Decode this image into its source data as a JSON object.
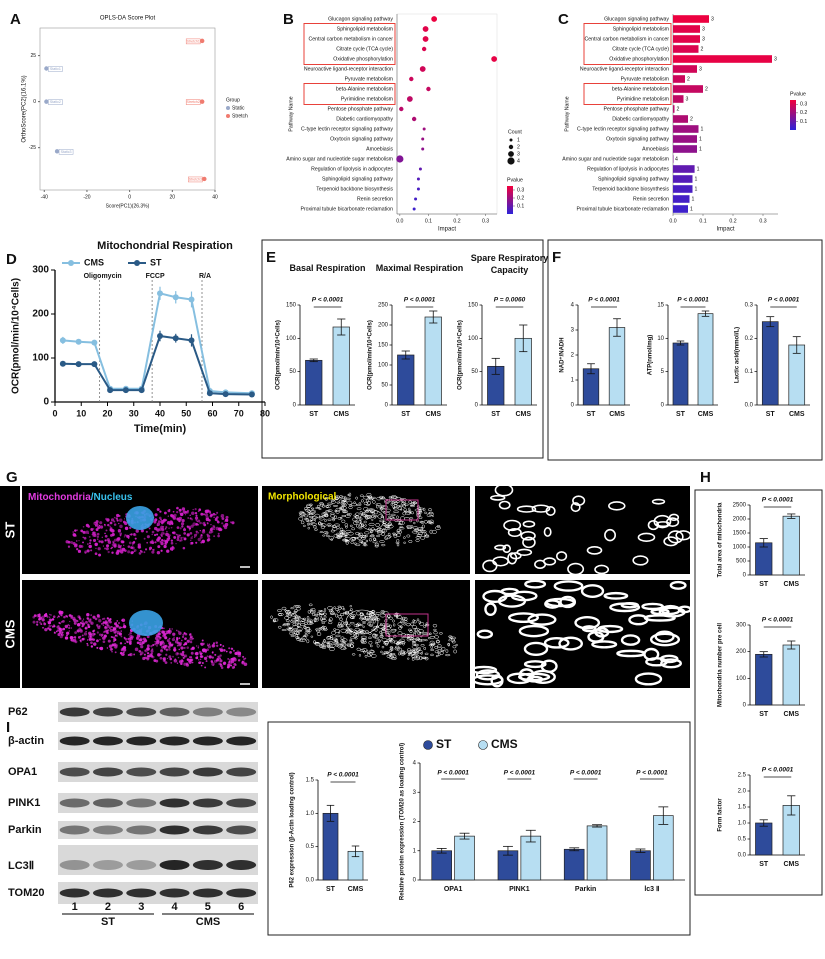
{
  "panels": [
    "A",
    "B",
    "C",
    "D",
    "E",
    "F",
    "G",
    "H",
    "I"
  ],
  "microscopy": {
    "stain": [
      "Mitochondria",
      "/Nucleus"
    ],
    "morph": "Morphological",
    "rows": [
      "ST",
      "CMS"
    ]
  },
  "blot": {
    "proteins": [
      "P62",
      "β-actin",
      "OPA1",
      "PINK1",
      "Parkin",
      "LC3Ⅱ",
      "TOM20"
    ],
    "lanes": [
      1,
      2,
      3,
      4,
      5,
      6
    ],
    "groups": [
      "ST",
      "CMS"
    ]
  },
  "chart_data": [
    {
      "type": "scatter",
      "title": "OPLS-DA Score Plot",
      "xlabel": "Score(PC1)(26.3%)",
      "ylabel": "OrthoScore(PC2)(16.1%)",
      "legend_title": "Group",
      "series": [
        {
          "name": "Static",
          "color": "#9aa9c9",
          "x": [
            -39,
            -39,
            -34
          ],
          "y": [
            18,
            0,
            -27
          ],
          "labels": [
            "Static1",
            "Static2",
            "Static3"
          ]
        },
        {
          "name": "Stretch",
          "color": "#f07b6f",
          "x": [
            34,
            34,
            35
          ],
          "y": [
            33,
            0,
            -42
          ],
          "labels": [
            "Stretch1",
            "Stretch2",
            "Stretch3"
          ]
        }
      ],
      "xlim": [
        -42,
        40
      ],
      "ylim": [
        -48,
        40
      ],
      "xticks": [
        -40,
        -20,
        0,
        20,
        40
      ],
      "yticks": [
        -25,
        0,
        25
      ]
    },
    {
      "type": "bubble",
      "ylabel": "Pathway Name",
      "xlabel": "Impact",
      "categories": [
        "Glucagon signaling pathway",
        "Sphingolipid metabolism",
        "Central carbon metabolism in cancer",
        "Citrate cycle (TCA cycle)",
        "Oxidative phosphorylation",
        "Neuroactive ligand-receptor interaction",
        "Pyruvate metabolism",
        "beta-Alanine metabolism",
        "Pyrimidine metabolism",
        "Pentose phosphate pathway",
        "Diabetic cardiomyopathy",
        "C-type lectin receptor signaling pathway",
        "Oxytocin signaling pathway",
        "Amoebiasis",
        "Amino sugar and nucleotide sugar metabolism",
        "Regulation of lipolysis in adipocytes",
        "Sphingolipid signaling pathway",
        "Terpenoid backbone biosynthesis",
        "Renin secretion",
        "Proximal tubule bicarbonate reclamation"
      ],
      "values": [
        0.12,
        0.09,
        0.09,
        0.085,
        0.33,
        0.08,
        0.04,
        0.1,
        0.035,
        0.005,
        0.05,
        0.085,
        0.08,
        0.08,
        0,
        0.072,
        0.065,
        0.065,
        0.055,
        0.05
      ],
      "counts": [
        3,
        3,
        3,
        2,
        3,
        3,
        2,
        2,
        3,
        2,
        2,
        1,
        1,
        1,
        4,
        1,
        1,
        1,
        1,
        1
      ],
      "pvalues": [
        0.01,
        0.03,
        0.03,
        0.04,
        0.02,
        0.06,
        0.07,
        0.08,
        0.09,
        0.1,
        0.12,
        0.15,
        0.16,
        0.18,
        0.2,
        0.26,
        0.28,
        0.3,
        0.31,
        0.32
      ],
      "xlim": [
        -0.01,
        0.34
      ],
      "xticks": [
        {
          "value": 0,
          "label": "0.0"
        },
        0.1,
        0.2,
        0.3
      ],
      "size_legend_title": "Count",
      "size_legend": [
        1,
        2,
        3,
        4
      ],
      "color_legend_title": "Pvalue",
      "clim": [
        0,
        0.35
      ],
      "cticks": [
        0.1,
        0.2,
        0.3
      ],
      "color_scale": [
        "#f2003c",
        "#2d23d8"
      ]
    },
    {
      "type": "hbar",
      "ylabel": "Pathway Name",
      "xlabel": "Impact",
      "categories": [
        "Glucagon signaling pathway",
        "Sphingolipid metabolism",
        "Central carbon metabolism in cancer",
        "Citrate cycle (TCA cycle)",
        "Oxidative phosphorylation",
        "Neuroactive ligand-receptor interaction",
        "Pyruvate metabolism",
        "beta-Alanine metabolism",
        "Pyrimidine metabolism",
        "Pentose phosphate pathway",
        "Diabetic cardiomyopathy",
        "C-type lectin receptor signaling pathway",
        "Oxytocin signaling pathway",
        "Amoebiasis",
        "Amino sugar and nucleotide sugar metabolism",
        "Regulation of lipolysis in adipocytes",
        "Sphingolipid signaling pathway",
        "Terpenoid backbone biosynthesis",
        "Renin secretion",
        "Proximal tubule bicarbonate reclamation"
      ],
      "values": [
        0.12,
        0.09,
        0.09,
        0.085,
        0.33,
        0.08,
        0.04,
        0.1,
        0.035,
        0.005,
        0.05,
        0.085,
        0.08,
        0.08,
        0,
        0.072,
        0.065,
        0.065,
        0.055,
        0.05
      ],
      "counts": [
        3,
        3,
        3,
        2,
        3,
        3,
        2,
        2,
        3,
        2,
        2,
        1,
        1,
        1,
        4,
        1,
        1,
        1,
        1,
        1
      ],
      "pvalues": [
        0.01,
        0.03,
        0.03,
        0.04,
        0.02,
        0.06,
        0.07,
        0.08,
        0.09,
        0.1,
        0.12,
        0.15,
        0.16,
        0.18,
        0.2,
        0.26,
        0.28,
        0.3,
        0.31,
        0.32
      ],
      "xlim": [
        0,
        0.35
      ],
      "xticks": [
        {
          "value": 0,
          "label": "0.0"
        },
        0.1,
        0.2,
        0.3
      ],
      "color_legend_title": "Pvalue",
      "clim": [
        0,
        0.35
      ],
      "cticks": [
        0.1,
        0.2,
        0.3
      ],
      "color_scale": [
        "#f2003c",
        "#2d23d8"
      ]
    },
    {
      "type": "line",
      "title": "Mitochondrial Respiration",
      "xlabel": "Time(min)",
      "ylabel": "OCR(pmol/min/10⁴Cells)",
      "x": [
        3,
        9,
        15,
        21,
        27,
        33,
        40,
        46,
        52,
        59,
        65,
        75
      ],
      "series": [
        {
          "name": "CMS",
          "color": "#86bfe0",
          "values": [
            140,
            137,
            135,
            30,
            30,
            30,
            247,
            238,
            233,
            25,
            22,
            20
          ],
          "errors": [
            8,
            6,
            6,
            3,
            3,
            3,
            15,
            14,
            18,
            3,
            3,
            3
          ]
        },
        {
          "name": "ST",
          "color": "#2a5a86",
          "values": [
            87,
            86,
            86,
            27,
            27,
            27,
            150,
            145,
            140,
            20,
            18,
            17
          ],
          "errors": [
            4,
            4,
            4,
            2,
            2,
            2,
            12,
            10,
            14,
            2,
            2,
            2
          ]
        }
      ],
      "annotations": [
        {
          "text": "Oligomycin",
          "x": 17
        },
        {
          "text": "FCCP",
          "x": 37
        },
        {
          "text": "R/A",
          "x": 56
        }
      ],
      "xlim": [
        0,
        80
      ],
      "ylim": [
        0,
        300
      ],
      "xticks": [
        0,
        10,
        20,
        30,
        40,
        50,
        60,
        70,
        80
      ],
      "yticks": [
        0,
        100,
        200,
        300
      ]
    },
    {
      "type": "bar",
      "title": "Basal Respiration",
      "ylabel": "OCR(pmol/min/10⁴Cells)",
      "categories": [
        "ST",
        "CMS"
      ],
      "values": [
        67,
        117
      ],
      "errors": [
        2,
        12
      ],
      "colors": [
        "#2e4b9b",
        "#b7def2"
      ],
      "ylim": [
        0,
        150
      ],
      "yticks": [
        0,
        50,
        100,
        150
      ],
      "p_label": "P < 0.0001"
    },
    {
      "type": "bar",
      "title": "Maximal Respiration",
      "ylabel": "OCR(pmol/min/10⁴Cells)",
      "categories": [
        "ST",
        "CMS"
      ],
      "values": [
        125,
        220
      ],
      "errors": [
        10,
        15
      ],
      "colors": [
        "#2e4b9b",
        "#b7def2"
      ],
      "ylim": [
        0,
        250
      ],
      "yticks": [
        0,
        50,
        100,
        150,
        200,
        250
      ],
      "p_label": "P < 0.0001"
    },
    {
      "type": "bar",
      "title": "Spare Respiratory Capacity",
      "ylabel": "OCR(pmol/min/10⁴Cells)",
      "categories": [
        "ST",
        "CMS"
      ],
      "values": [
        58,
        100
      ],
      "errors": [
        12,
        20
      ],
      "colors": [
        "#2e4b9b",
        "#b7def2"
      ],
      "ylim": [
        0,
        150
      ],
      "yticks": [
        0,
        50,
        100,
        150
      ],
      "p_label": "P = 0.0060"
    },
    {
      "type": "bar",
      "ylabel": "NAD⁺/NADH",
      "categories": [
        "ST",
        "CMS"
      ],
      "values": [
        1.45,
        3.1
      ],
      "errors": [
        0.2,
        0.35
      ],
      "colors": [
        "#2e4b9b",
        "#b7def2"
      ],
      "ylim": [
        0,
        4
      ],
      "yticks": [
        0,
        1,
        2,
        3,
        4
      ],
      "p_label": "P < 0.0001"
    },
    {
      "type": "bar",
      "ylabel": "ATP(nmol/mg)",
      "categories": [
        "ST",
        "CMS"
      ],
      "values": [
        9.3,
        13.7
      ],
      "errors": [
        0.3,
        0.4
      ],
      "colors": [
        "#2e4b9b",
        "#b7def2"
      ],
      "ylim": [
        0,
        15
      ],
      "yticks": [
        0,
        5,
        10,
        15
      ],
      "p_label": "P < 0.0001"
    },
    {
      "type": "bar",
      "ylabel": "Lactic acid(mmol/L)",
      "categories": [
        "ST",
        "CMS"
      ],
      "values": [
        0.25,
        0.18
      ],
      "errors": [
        0.015,
        0.025
      ],
      "colors": [
        "#2e4b9b",
        "#b7def2"
      ],
      "ylim": [
        0,
        0.3
      ],
      "yticks": [
        {
          "value": 0,
          "label": "0.0"
        },
        0.1,
        0.2,
        0.3
      ],
      "p_label": "P < 0.0001"
    },
    {
      "type": "bar",
      "ylabel": "Total area of mitochondria",
      "categories": [
        "ST",
        "CMS"
      ],
      "values": [
        1150,
        2100
      ],
      "errors": [
        150,
        80
      ],
      "colors": [
        "#2e4b9b",
        "#b7def2"
      ],
      "ylim": [
        0,
        2500
      ],
      "yticks": [
        0,
        500,
        1000,
        1500,
        2000,
        2500
      ],
      "p_label": "P < 0.0001"
    },
    {
      "type": "bar",
      "ylabel": "Mitochondria number pre cell",
      "categories": [
        "ST",
        "CMS"
      ],
      "values": [
        190,
        225
      ],
      "errors": [
        10,
        15
      ],
      "colors": [
        "#2e4b9b",
        "#b7def2"
      ],
      "ylim": [
        0,
        300
      ],
      "yticks": [
        0,
        100,
        200,
        300
      ],
      "p_label": "P < 0.0001"
    },
    {
      "type": "bar",
      "ylabel": "Form factor",
      "categories": [
        "ST",
        "CMS"
      ],
      "values": [
        1.0,
        1.55
      ],
      "errors": [
        0.1,
        0.3
      ],
      "colors": [
        "#2e4b9b",
        "#b7def2"
      ],
      "ylim": [
        0,
        2.5
      ],
      "yticks": [
        {
          "value": 0,
          "label": "0.0"
        },
        0.5,
        {
          "value": 1,
          "label": "1.0"
        },
        1.5,
        {
          "value": 2,
          "label": "2.0"
        },
        2.5
      ],
      "p_label": "P < 0.0001"
    },
    {
      "type": "bar",
      "ylabel": "P62 expression (β-Actin loading control)",
      "categories": [
        "ST",
        "CMS"
      ],
      "values": [
        1.0,
        0.43
      ],
      "errors": [
        0.12,
        0.08
      ],
      "colors": [
        "#2e4b9b",
        "#b7def2"
      ],
      "ylim": [
        0,
        1.5
      ],
      "yticks": [
        {
          "value": 0,
          "label": "0.0"
        },
        0.5,
        {
          "value": 1,
          "label": "1.0"
        },
        1.5
      ],
      "p_label": "P < 0.0001"
    },
    {
      "type": "bar",
      "ylabel": "Relative protein expression (TOM20 as loading control)",
      "categories": [
        "OPA1",
        "PINK1",
        "Parkin",
        "lc3 Ⅱ"
      ],
      "series": [
        {
          "name": "ST",
          "color": "#2e4b9b",
          "values": [
            1.0,
            1.0,
            1.05,
            1.0
          ],
          "errors": [
            0.08,
            0.15,
            0.05,
            0.06
          ]
        },
        {
          "name": "CMS",
          "color": "#b7def2",
          "values": [
            1.5,
            1.5,
            1.85,
            2.2
          ],
          "errors": [
            0.1,
            0.2,
            0.04,
            0.3
          ]
        }
      ],
      "ylim": [
        0,
        4
      ],
      "yticks": [
        0,
        1,
        2,
        3,
        4
      ],
      "p_labels": [
        "P < 0.0001",
        "P < 0.0001",
        "P < 0.0001",
        "P < 0.0001"
      ]
    }
  ]
}
